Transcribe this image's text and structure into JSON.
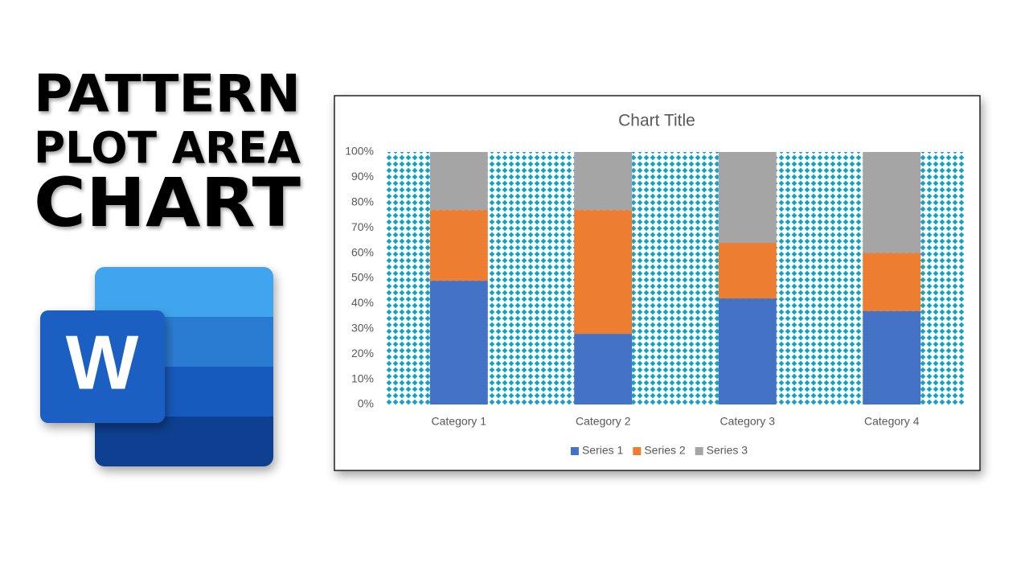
{
  "headline": [
    "PATTERN",
    "PLOT AREA",
    "CHART"
  ],
  "logo_letter": "W",
  "chart_data": {
    "type": "stacked_bar_100",
    "title": "Chart Title",
    "categories": [
      "Category 1",
      "Category 2",
      "Category 3",
      "Category 4"
    ],
    "series": [
      {
        "name": "Series 1",
        "color": "#4472c4",
        "values": [
          49,
          28,
          42,
          37
        ]
      },
      {
        "name": "Series 2",
        "color": "#ed7d31",
        "values": [
          28,
          49,
          22,
          23
        ]
      },
      {
        "name": "Series 3",
        "color": "#a5a5a5",
        "values": [
          23,
          23,
          36,
          40
        ]
      }
    ],
    "ylim": [
      0,
      100
    ],
    "yticks": [
      {
        "value": 0,
        "label": "0%"
      },
      {
        "value": 10,
        "label": "10%"
      },
      {
        "value": 20,
        "label": "20%"
      },
      {
        "value": 30,
        "label": "30%"
      },
      {
        "value": 40,
        "label": "40%"
      },
      {
        "value": 50,
        "label": "50%"
      },
      {
        "value": 60,
        "label": "60%"
      },
      {
        "value": 70,
        "label": "70%"
      },
      {
        "value": 80,
        "label": "80%"
      },
      {
        "value": 90,
        "label": "90%"
      },
      {
        "value": 100,
        "label": "100%"
      }
    ],
    "plot_pattern_color": "#17a2c4",
    "legend": "bottom"
  }
}
